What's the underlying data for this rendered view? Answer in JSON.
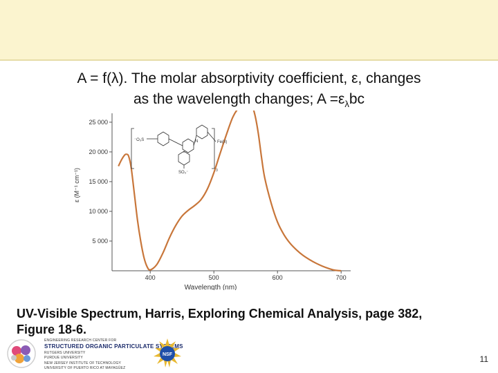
{
  "header": {
    "line1": "A = f(λ). The molar absorptivity coefficient, ε, changes",
    "line2_main": "as the wavelength changes; A =ε",
    "line2_sub": "λ",
    "line2_end": "bc"
  },
  "caption": {
    "line1": "UV-Visible Spectrum, Harris, Exploring Chemical Analysis, page 382,",
    "line2": "Figure 18-6."
  },
  "footer": {
    "line1": "ENGINEERING RESEARCH CENTER FOR",
    "line2": "STRUCTURED ORGANIC PARTICULATE SYSTEMS",
    "line3": "RUTGERS UNIVERSITY",
    "line4": "PURDUE UNIVERSITY",
    "line5": "NEW JERSEY INSTITUTE OF TECHNOLOGY",
    "line6": "UNIVERSITY OF PUERTO RICO AT MAYAGÜEZ",
    "nsf_label": "NSF",
    "page_number": "11"
  },
  "colors": {
    "top_band": "#fbf4cf",
    "curve": "#c8763a",
    "axis": "#555555"
  },
  "chart_data": {
    "type": "line",
    "title": "",
    "xlabel": "Wavelength (nm)",
    "ylabel": "ε (M⁻¹ cm⁻¹)",
    "xlim": [
      340,
      715
    ],
    "ylim": [
      0,
      26500
    ],
    "x_ticks": [
      400,
      500,
      600,
      700
    ],
    "x_tick_labels": [
      "400",
      "500",
      "600",
      "700"
    ],
    "y_ticks": [
      5000,
      10000,
      15000,
      20000,
      25000
    ],
    "y_tick_labels": [
      "5 000",
      "10 000",
      "15 000",
      "20 000",
      "25 000"
    ],
    "grid": false,
    "legend": "none",
    "series": [
      {
        "x": [
          350,
          355,
          360,
          363,
          366,
          370,
          375,
          380,
          385,
          390,
          395,
          400,
          410,
          420,
          430,
          440,
          450,
          460,
          470,
          480,
          490,
          500,
          510,
          520,
          530,
          540,
          550,
          555,
          560,
          565,
          570,
          575,
          580,
          590,
          600,
          610,
          620,
          630,
          640,
          650,
          660,
          670,
          680,
          690,
          700
        ],
        "y": [
          17600,
          18700,
          19500,
          19600,
          19300,
          17400,
          13000,
          8500,
          5000,
          2300,
          700,
          150,
          1000,
          3000,
          5500,
          7600,
          9200,
          10200,
          11000,
          12000,
          13800,
          16500,
          19800,
          23000,
          25900,
          27500,
          28000,
          28300,
          27800,
          26000,
          23000,
          19000,
          15600,
          11400,
          8200,
          6100,
          4600,
          3500,
          2600,
          1900,
          1300,
          800,
          400,
          100,
          0
        ]
      }
    ],
    "inset": {
      "labels": [
        "⁻O₃S",
        "SO₃⁻",
        "N",
        "Fe(II)",
        "3"
      ]
    }
  }
}
